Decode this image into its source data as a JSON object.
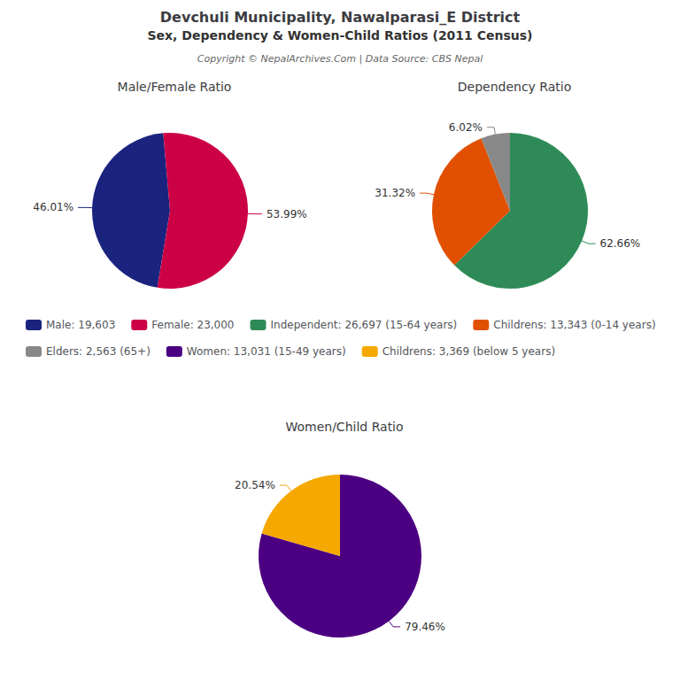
{
  "title": "Devchuli Municipality, Nawalparasi_E District",
  "subtitle": "Sex, Dependency & Women-Child Ratios (2011 Census)",
  "annotations": [
    "Copyright © NepalArchives.Com | Data Source: CBS Nepal"
  ],
  "chart_data": [
    {
      "type": "pie",
      "title": "Male/Female Ratio",
      "categories": [
        "Male: 19,603",
        "Female: 23,000"
      ],
      "values": [
        46.01,
        53.99
      ],
      "value_labels": [
        "46.01%",
        "53.99%"
      ],
      "colors": [
        "#1a237e",
        "#cc0044"
      ],
      "data_labels": true,
      "legend": "center"
    },
    {
      "type": "pie",
      "title": "Dependency Ratio",
      "categories": [
        "Independent: 26,697 (15-64 years)",
        "Childrens: 13,343 (0-14 years)",
        "Elders: 2,563 (65+)"
      ],
      "values": [
        62.66,
        31.32,
        6.02
      ],
      "value_labels": [
        "62.66%",
        "31.32%",
        "6.02%"
      ],
      "colors": [
        "#2e8b57",
        "#e05000",
        "#888888"
      ],
      "data_labels": true,
      "legend": "center"
    },
    {
      "type": "pie",
      "title": "Women/Child Ratio",
      "categories": [
        "Women: 13,031 (15-49 years)",
        "Childrens: 3,369 (below 5 years)"
      ],
      "values": [
        79.46,
        20.54
      ],
      "value_labels": [
        "79.46%",
        "20.54%"
      ],
      "colors": [
        "#4b0082",
        "#f5a800"
      ],
      "data_labels": true,
      "legend": "center"
    }
  ]
}
